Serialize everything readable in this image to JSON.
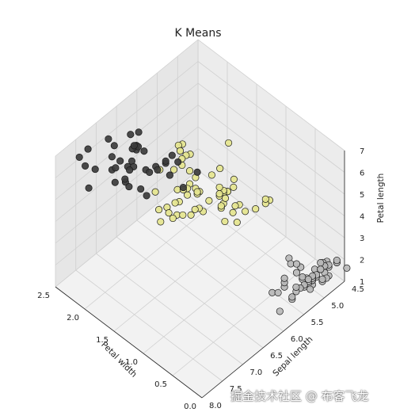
{
  "chart_data": {
    "type": "scatter",
    "projection": "3d",
    "title": "K Means",
    "xlabel": "Petal width",
    "ylabel": "Sepal length",
    "zlabel": "Petal length",
    "xlim": [
      0.0,
      2.5
    ],
    "ylim": [
      4.5,
      8.0
    ],
    "zlim": [
      1,
      7
    ],
    "x_ticks": [
      "0.0",
      "0.5",
      "1.0",
      "1.5",
      "2.0",
      "2.5"
    ],
    "y_ticks": [
      "4.5",
      "5.0",
      "5.5",
      "6.0",
      "6.5",
      "7.0",
      "7.5",
      "8.0"
    ],
    "z_ticks": [
      "1",
      "2",
      "3",
      "4",
      "5",
      "6",
      "7"
    ],
    "grid": true,
    "series": [
      {
        "color": "#3c3c3c",
        "points": [
          [
            2.1,
            7.6,
            6.6
          ],
          [
            2.5,
            7.2,
            6.1
          ],
          [
            2.3,
            7.7,
            6.9
          ],
          [
            1.8,
            7.3,
            6.3
          ],
          [
            2.2,
            7.7,
            6.7
          ],
          [
            2.0,
            6.9,
            5.7
          ],
          [
            2.1,
            7.1,
            5.9
          ],
          [
            2.3,
            6.9,
            5.7
          ],
          [
            1.9,
            7.4,
            6.1
          ],
          [
            2.0,
            7.9,
            6.4
          ],
          [
            2.4,
            6.7,
            5.7
          ],
          [
            2.2,
            6.5,
            5.8
          ],
          [
            2.1,
            6.8,
            5.5
          ],
          [
            2.3,
            6.7,
            5.2
          ],
          [
            1.8,
            7.2,
            5.8
          ],
          [
            2.0,
            6.5,
            5.1
          ],
          [
            1.8,
            6.3,
            5.6
          ],
          [
            2.1,
            6.7,
            5.6
          ],
          [
            2.5,
            6.7,
            5.8
          ],
          [
            1.5,
            7.2,
            6.0
          ],
          [
            2.1,
            6.4,
            5.6
          ],
          [
            2.3,
            6.4,
            5.3
          ],
          [
            1.8,
            6.3,
            5.5
          ],
          [
            2.0,
            6.8,
            5.7
          ],
          [
            1.8,
            6.5,
            5.5
          ],
          [
            1.6,
            7.2,
            6.1
          ],
          [
            1.9,
            6.4,
            5.3
          ],
          [
            2.4,
            6.3,
            5.6
          ],
          [
            2.2,
            6.4,
            5.6
          ],
          [
            2.3,
            6.9,
            5.1
          ],
          [
            2.0,
            7.0,
            5.3
          ],
          [
            1.8,
            6.7,
            5.7
          ],
          [
            1.4,
            6.1,
            5.6
          ],
          [
            2.3,
            6.3,
            5.1
          ],
          [
            1.8,
            6.0,
            5.1
          ],
          [
            1.5,
            6.3,
            5.0
          ],
          [
            2.4,
            6.1,
            5.4
          ],
          [
            1.8,
            6.2,
            4.8
          ],
          [
            1.9,
            6.0,
            5.2
          ],
          [
            2.3,
            6.3,
            5.3
          ]
        ]
      },
      {
        "color": "#e5e58e",
        "points": [
          [
            1.4,
            7.0,
            4.7
          ],
          [
            1.5,
            6.4,
            4.5
          ],
          [
            1.5,
            6.9,
            4.9
          ],
          [
            1.3,
            5.5,
            4.0
          ],
          [
            1.5,
            6.5,
            4.6
          ],
          [
            1.3,
            5.7,
            4.5
          ],
          [
            1.6,
            6.3,
            4.7
          ],
          [
            1.0,
            4.9,
            3.3
          ],
          [
            1.3,
            6.6,
            4.6
          ],
          [
            1.4,
            5.2,
            3.9
          ],
          [
            1.0,
            5.0,
            3.5
          ],
          [
            1.5,
            5.9,
            4.2
          ],
          [
            1.0,
            6.0,
            4.0
          ],
          [
            1.4,
            6.1,
            4.7
          ],
          [
            1.3,
            5.6,
            3.6
          ],
          [
            1.4,
            6.7,
            4.4
          ],
          [
            1.5,
            5.6,
            4.5
          ],
          [
            1.0,
            5.8,
            4.1
          ],
          [
            1.5,
            6.2,
            4.5
          ],
          [
            1.1,
            5.6,
            3.9
          ],
          [
            1.8,
            5.9,
            4.8
          ],
          [
            1.3,
            6.1,
            4.0
          ],
          [
            1.5,
            6.3,
            4.9
          ],
          [
            1.2,
            6.1,
            4.7
          ],
          [
            1.3,
            6.4,
            4.3
          ],
          [
            1.4,
            6.6,
            4.4
          ],
          [
            1.4,
            6.8,
            4.8
          ],
          [
            1.7,
            6.7,
            5.0
          ],
          [
            1.5,
            6.0,
            4.5
          ],
          [
            1.0,
            5.7,
            3.5
          ],
          [
            1.1,
            5.5,
            3.8
          ],
          [
            1.0,
            5.5,
            3.7
          ],
          [
            1.2,
            5.8,
            3.9
          ],
          [
            1.6,
            6.0,
            5.1
          ],
          [
            1.5,
            5.4,
            4.5
          ],
          [
            1.6,
            6.0,
            4.5
          ],
          [
            1.5,
            6.7,
            4.7
          ],
          [
            1.3,
            6.3,
            4.4
          ],
          [
            1.3,
            5.6,
            4.1
          ],
          [
            1.3,
            5.5,
            4.0
          ],
          [
            1.2,
            5.5,
            4.4
          ],
          [
            1.4,
            6.1,
            4.6
          ],
          [
            1.2,
            5.8,
            4.0
          ],
          [
            1.0,
            5.0,
            3.3
          ],
          [
            1.3,
            5.6,
            4.2
          ],
          [
            1.2,
            5.7,
            4.2
          ],
          [
            1.3,
            5.7,
            4.2
          ],
          [
            1.3,
            6.2,
            4.3
          ],
          [
            1.1,
            5.1,
            3.0
          ],
          [
            1.3,
            5.7,
            4.1
          ],
          [
            1.7,
            4.9,
            4.5
          ],
          [
            1.8,
            5.7,
            5.0
          ],
          [
            1.5,
            6.0,
            5.0
          ],
          [
            1.8,
            6.1,
            4.9
          ],
          [
            1.5,
            6.2,
            4.8
          ],
          [
            1.9,
            5.8,
            5.1
          ],
          [
            1.9,
            5.8,
            5.1
          ],
          [
            1.9,
            6.3,
            5.0
          ],
          [
            2.0,
            5.6,
            4.9
          ],
          [
            2.0,
            5.7,
            5.0
          ],
          [
            1.8,
            5.9,
            5.1
          ],
          [
            1.8,
            5.8,
            5.1
          ]
        ]
      },
      {
        "color": "#b9b9b9",
        "points": [
          [
            0.2,
            5.1,
            1.4
          ],
          [
            0.2,
            4.9,
            1.4
          ],
          [
            0.2,
            4.7,
            1.3
          ],
          [
            0.2,
            4.6,
            1.5
          ],
          [
            0.2,
            5.0,
            1.4
          ],
          [
            0.4,
            5.4,
            1.7
          ],
          [
            0.3,
            4.6,
            1.4
          ],
          [
            0.2,
            5.0,
            1.5
          ],
          [
            0.2,
            4.4,
            1.4
          ],
          [
            0.1,
            4.9,
            1.5
          ],
          [
            0.2,
            5.4,
            1.5
          ],
          [
            0.2,
            4.8,
            1.6
          ],
          [
            0.1,
            4.8,
            1.4
          ],
          [
            0.1,
            4.3,
            1.1
          ],
          [
            0.2,
            5.8,
            1.2
          ],
          [
            0.4,
            5.7,
            1.5
          ],
          [
            0.4,
            5.4,
            1.3
          ],
          [
            0.3,
            5.1,
            1.4
          ],
          [
            0.3,
            5.7,
            1.7
          ],
          [
            0.3,
            5.1,
            1.5
          ],
          [
            0.2,
            5.4,
            1.7
          ],
          [
            0.4,
            5.1,
            1.5
          ],
          [
            0.2,
            4.6,
            1.0
          ],
          [
            0.5,
            5.1,
            1.7
          ],
          [
            0.2,
            4.8,
            1.9
          ],
          [
            0.2,
            5.0,
            1.6
          ],
          [
            0.4,
            5.0,
            1.6
          ],
          [
            0.2,
            5.2,
            1.5
          ],
          [
            0.2,
            5.2,
            1.4
          ],
          [
            0.2,
            4.7,
            1.6
          ],
          [
            0.2,
            4.8,
            1.6
          ],
          [
            0.4,
            5.4,
            1.5
          ],
          [
            0.1,
            5.2,
            1.5
          ],
          [
            0.2,
            5.5,
            1.4
          ],
          [
            0.2,
            4.9,
            1.5
          ],
          [
            0.2,
            5.0,
            1.2
          ],
          [
            0.2,
            5.5,
            1.3
          ],
          [
            0.1,
            4.9,
            1.4
          ],
          [
            0.2,
            4.4,
            1.3
          ],
          [
            0.2,
            5.1,
            1.5
          ],
          [
            0.3,
            5.0,
            1.3
          ],
          [
            0.3,
            4.5,
            1.3
          ],
          [
            0.2,
            4.4,
            1.3
          ],
          [
            0.6,
            5.0,
            1.6
          ],
          [
            0.4,
            5.1,
            1.9
          ],
          [
            0.3,
            4.8,
            1.4
          ],
          [
            0.2,
            5.1,
            1.6
          ],
          [
            0.2,
            4.6,
            1.4
          ],
          [
            0.2,
            5.3,
            1.5
          ],
          [
            0.2,
            5.0,
            1.4
          ]
        ]
      }
    ]
  },
  "watermark": "掘金技术社区 @ 布客飞龙"
}
